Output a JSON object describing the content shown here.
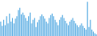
{
  "chart_data": {
    "type": "bar",
    "values": [
      40,
      28,
      45,
      30,
      55,
      35,
      62,
      40,
      50,
      35,
      48,
      55,
      72,
      78,
      60,
      65,
      58,
      50,
      42,
      55,
      65,
      35,
      45,
      50,
      25,
      38,
      45,
      55,
      60,
      55,
      48,
      40,
      35,
      50,
      58,
      62,
      55,
      45,
      38,
      30,
      45,
      52,
      58,
      50,
      42,
      35,
      30,
      40,
      45,
      50,
      42,
      35,
      30,
      25,
      30,
      35,
      28,
      22,
      18,
      95,
      25,
      45,
      18,
      12,
      8,
      5
    ],
    "color": "#4da6e0",
    "ylim": [
      0,
      99.75
    ],
    "grid": false,
    "tick_labels": false
  }
}
